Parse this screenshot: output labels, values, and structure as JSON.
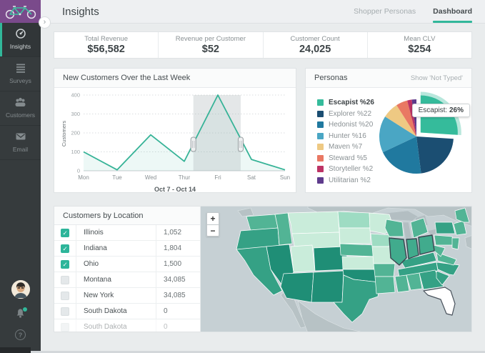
{
  "app": {
    "accent": "#31b79a",
    "logo_purple": "#7a4a8b"
  },
  "header": {
    "title": "Insights",
    "tabs": [
      {
        "label": "Shopper Personas",
        "active": false
      },
      {
        "label": "Dashboard",
        "active": true
      }
    ]
  },
  "sidebar": {
    "items": [
      {
        "label": "Insights",
        "icon": "gauge-icon",
        "active": true
      },
      {
        "label": "Surveys",
        "icon": "list-icon",
        "active": false
      },
      {
        "label": "Customers",
        "icon": "people-icon",
        "active": false
      },
      {
        "label": "Email",
        "icon": "envelope-icon",
        "active": false
      }
    ]
  },
  "kpis": [
    {
      "label": "Total Revenue",
      "value": "$56,582"
    },
    {
      "label": "Revenue per Customer",
      "value": "$52"
    },
    {
      "label": "Customer Count",
      "value": "24,025"
    },
    {
      "label": "Mean CLV",
      "value": "$254"
    }
  ],
  "chart_data": [
    {
      "type": "line",
      "title": "New Customers Over the Last Week",
      "x": [
        "Mon",
        "Tue",
        "Wed",
        "Thur",
        "Fri",
        "Sat",
        "Sun"
      ],
      "values": [
        100,
        5,
        190,
        50,
        400,
        60,
        5
      ],
      "ylabel": "Customers",
      "yticks": [
        0,
        100,
        200,
        300,
        400
      ],
      "ylim": [
        0,
        400
      ],
      "footer": "Oct 7 - Oct 14",
      "selection": {
        "start_frac": 0.545,
        "end_frac": 0.78
      },
      "line_color": "#36b397",
      "grid": true
    },
    {
      "type": "pie",
      "title": "Personas",
      "labels": [
        "Escapist",
        "Explorer",
        "Hedonist",
        "Hunter",
        "Maven",
        "Steward",
        "Storyteller",
        "Utilitarian"
      ],
      "values": [
        26,
        22,
        20,
        16,
        7,
        5,
        2,
        2
      ],
      "display": [
        "Escapist %26",
        "Explorer %22",
        "Hedonist %20",
        "Hunter %16",
        "Maven %7",
        "Steward %5",
        "Storyteller %2",
        "Utilitarian %2"
      ],
      "colors": [
        "#35bb9b",
        "#1b4e72",
        "#20799f",
        "#4aa6c4",
        "#eec983",
        "#e97863",
        "#bd3365",
        "#5e3b8c"
      ],
      "exploded_index": 0,
      "legend_position": "left"
    }
  ],
  "personas_panel": {
    "title": "Personas",
    "action": "Show 'Not Typed'",
    "tooltip": {
      "label": "Escapist:",
      "value": "26%"
    }
  },
  "customers_table": {
    "title": "Customers by Location",
    "rows": [
      {
        "state": "Illinois",
        "value": "1,052",
        "checked": true,
        "faded": false
      },
      {
        "state": "Indiana",
        "value": "1,804",
        "checked": true,
        "faded": false
      },
      {
        "state": "Ohio",
        "value": "1,500",
        "checked": true,
        "faded": false
      },
      {
        "state": "Montana",
        "value": "34,085",
        "checked": false,
        "faded": false
      },
      {
        "state": "New York",
        "value": "34,085",
        "checked": false,
        "faded": false
      },
      {
        "state": "South Dakota",
        "value": "0",
        "checked": false,
        "faded": false
      },
      {
        "state": "South Dakota",
        "value": "0",
        "checked": false,
        "faded": true
      }
    ]
  },
  "map": {
    "zoom_in": "+",
    "zoom_out": "−",
    "highlighted_states": [
      "Illinois",
      "Indiana",
      "Ohio"
    ],
    "white_state": "Florida"
  }
}
